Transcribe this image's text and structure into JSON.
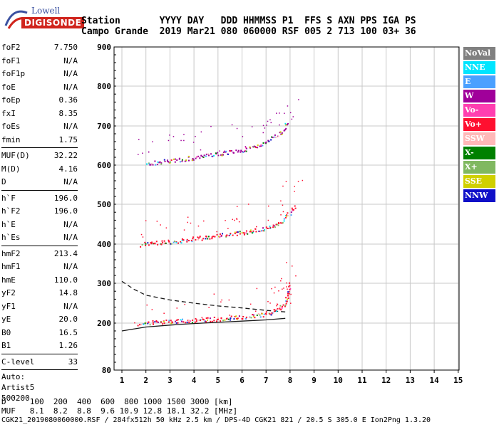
{
  "logo": {
    "line1": "Lowell",
    "line2": "DIGISONDE"
  },
  "header": {
    "labels": "Station       YYYY DAY   DDD HHMMSS P1  FFS S AXN PPS IGA PS",
    "values": "Campo Grande  2019 Mar21 080 060000 RSF 005 2 713 100 03+ 36"
  },
  "params": {
    "group1": [
      {
        "k": "foF2",
        "v": "7.750"
      },
      {
        "k": "foF1",
        "v": "N/A"
      },
      {
        "k": "foF1p",
        "v": "N/A"
      },
      {
        "k": "foE",
        "v": "N/A"
      },
      {
        "k": "foEp",
        "v": "0.36"
      },
      {
        "k": "fxI",
        "v": "8.35"
      },
      {
        "k": "foEs",
        "v": "N/A"
      },
      {
        "k": "fmin",
        "v": "1.75"
      }
    ],
    "group2": [
      {
        "k": "MUF(D)",
        "v": "32.22"
      },
      {
        "k": "M(D)",
        "v": "4.16"
      },
      {
        "k": "D",
        "v": "N/A"
      }
    ],
    "group3": [
      {
        "k": "h`F",
        "v": "196.0"
      },
      {
        "k": "h`F2",
        "v": "196.0"
      },
      {
        "k": "h`E",
        "v": "N/A"
      },
      {
        "k": "h`Es",
        "v": "N/A"
      }
    ],
    "group4": [
      {
        "k": "hmF2",
        "v": "213.4"
      },
      {
        "k": "hmF1",
        "v": "N/A"
      },
      {
        "k": "hmE",
        "v": "110.0"
      },
      {
        "k": "yF2",
        "v": "14.8"
      },
      {
        "k": "yF1",
        "v": "N/A"
      },
      {
        "k": "yE",
        "v": "20.0"
      },
      {
        "k": "B0",
        "v": "16.5"
      },
      {
        "k": "B1",
        "v": "1.26"
      }
    ],
    "clevel": {
      "k": "C-level",
      "v": "33"
    },
    "auto": [
      "Auto:",
      "Artist5",
      "500200"
    ]
  },
  "legend": [
    {
      "label": "NoVal",
      "bg": "#808080",
      "fg": "#ffffff"
    },
    {
      "label": "NNE",
      "bg": "#00e5ff",
      "fg": "#ffffff"
    },
    {
      "label": "E",
      "bg": "#4aa0ff",
      "fg": "#ffffff"
    },
    {
      "label": "W",
      "bg": "#a0009a",
      "fg": "#ffffff"
    },
    {
      "label": "Vo-",
      "bg": "#ff3fb0",
      "fg": "#ffffff"
    },
    {
      "label": "Vo+",
      "bg": "#ff1030",
      "fg": "#ffffff"
    },
    {
      "label": "SSW",
      "bg": "#ffb8b8",
      "fg": "#ffffff"
    },
    {
      "label": "X-",
      "bg": "#008000",
      "fg": "#ffffff"
    },
    {
      "label": "X+",
      "bg": "#80b860",
      "fg": "#ffffff"
    },
    {
      "label": "SSE",
      "bg": "#d0d000",
      "fg": "#ffffff"
    },
    {
      "label": "NNW",
      "bg": "#1010c8",
      "fg": "#ffffff"
    }
  ],
  "footer": {
    "line1": "D     100  200  400  600  800 1000 1500 3000 [km]",
    "line2": "MUF   8.1  8.2  8.8  9.6 10.9 12.8 18.1 32.2 [MHz]",
    "line3": "CGK21_2019080060000.RSF / 284fx512h 50 kHz 2.5 km / DPS-4D CGK21 821 / 20.5 S 305.0 E Ion2Png 1.3.20"
  },
  "chart_data": {
    "type": "scatter",
    "xlim": [
      1,
      15
    ],
    "ylim": [
      80,
      900
    ],
    "x_ticks": [
      "1",
      "2",
      "3",
      "4",
      "5",
      "6",
      "7",
      "8",
      "9",
      "10",
      "11",
      "12",
      "13",
      "14",
      "15"
    ],
    "y_ticks": [
      "80",
      "200",
      "300",
      "400",
      "500",
      "600",
      "700",
      "800",
      "900"
    ],
    "grid": true,
    "series": [
      {
        "color": "#1a1a1a",
        "style": "solid",
        "x": [
          1.0,
          2.0,
          3.0,
          4.0,
          5.0,
          6.0,
          7.0,
          7.8
        ],
        "y": [
          180,
          190,
          195,
          199,
          202,
          205,
          208,
          212
        ]
      },
      {
        "color": "#1a1a1a",
        "style": "dashed",
        "x": [
          1.0,
          1.5,
          2.0,
          3.0,
          4.0,
          5.0,
          6.0,
          7.0,
          7.8
        ],
        "y": [
          305,
          285,
          270,
          258,
          250,
          243,
          238,
          232,
          228
        ]
      },
      {
        "color": "#ff1030",
        "style": "dots",
        "x": [
          1.7,
          2.5,
          3.5,
          4.5,
          5.5,
          6.3,
          7.0,
          7.4,
          7.7,
          7.85,
          8.0
        ],
        "y": [
          200,
          204,
          207,
          210,
          214,
          218,
          224,
          232,
          245,
          265,
          300
        ]
      },
      {
        "color": "#ff1030",
        "style": "dots",
        "x": [
          1.8,
          2.5,
          3.5,
          4.5,
          5.5,
          6.3,
          7.0,
          7.5,
          7.8,
          8.0,
          8.2
        ],
        "y": [
          400,
          404,
          410,
          418,
          425,
          432,
          440,
          452,
          468,
          482,
          498
        ]
      },
      {
        "color": "#a0009a",
        "style": "dots",
        "x": [
          2.0,
          3.0,
          4.0,
          5.0,
          6.0,
          6.8,
          7.3,
          7.7,
          7.9
        ],
        "y": [
          605,
          612,
          620,
          630,
          640,
          655,
          672,
          690,
          710
        ]
      }
    ]
  }
}
